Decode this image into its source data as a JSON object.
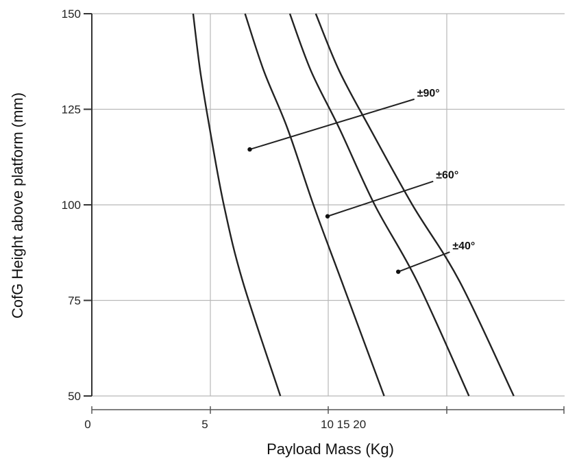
{
  "chart_data": {
    "type": "line",
    "title": "",
    "xlabel": "Payload Mass (Kg)",
    "ylabel": "CofG Height above platform (mm)",
    "ylim": [
      50,
      150
    ],
    "y_ticks": [
      50,
      75,
      100,
      125,
      150
    ],
    "x_tick_labels": [
      {
        "value": 0,
        "label": "0"
      },
      {
        "value": 5,
        "label": "5"
      },
      {
        "value": 10,
        "label": "10 15 20"
      }
    ],
    "grid": true,
    "series": [
      {
        "x": [
          4.3,
          4.6,
          5.0,
          5.6,
          6.4,
          8.0
        ],
        "y": [
          150,
          135,
          120,
          100,
          80,
          50
        ]
      },
      {
        "x": [
          6.5,
          7.3,
          8.3,
          9.4,
          10.6,
          12.4
        ],
        "y": [
          150,
          135,
          120,
          100,
          80,
          50
        ]
      },
      {
        "x": [
          8.4,
          9.3,
          10.5,
          12.0,
          13.8,
          16.0
        ],
        "y": [
          150,
          135,
          120,
          100,
          80,
          50
        ]
      },
      {
        "x": [
          9.5,
          10.5,
          11.8,
          13.6,
          15.6,
          17.9
        ],
        "y": [
          150,
          135,
          120,
          100,
          80,
          50
        ]
      }
    ],
    "annotations": [
      {
        "label": "±90°",
        "point": [
          6.7,
          114.5
        ],
        "text_at": [
          13.8,
          128
        ]
      },
      {
        "label": "±60°",
        "point": [
          10.0,
          97
        ],
        "text_at": [
          14.6,
          106.5
        ]
      },
      {
        "label": "±40°",
        "point": [
          13.0,
          82.5
        ],
        "text_at": [
          15.3,
          88
        ]
      }
    ]
  }
}
